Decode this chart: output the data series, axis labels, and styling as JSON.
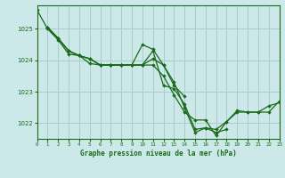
{
  "bg_color": "#cce8e8",
  "grid_color": "#aacccc",
  "line_color": "#1a6b1a",
  "marker_color": "#1a6b1a",
  "title": "Graphe pression niveau de la mer (hPa)",
  "xlim": [
    0,
    23
  ],
  "ylim": [
    1021.5,
    1025.75
  ],
  "yticks": [
    1022,
    1023,
    1024,
    1025
  ],
  "xticks": [
    0,
    1,
    2,
    3,
    4,
    5,
    6,
    7,
    8,
    9,
    10,
    11,
    12,
    13,
    14,
    15,
    16,
    17,
    18,
    19,
    20,
    21,
    22,
    23
  ],
  "x_series": [
    [
      1,
      2,
      3,
      4,
      5,
      6,
      7,
      8,
      9,
      10,
      11,
      12,
      13,
      14,
      15,
      16,
      17,
      18,
      19,
      20,
      21,
      22,
      23
    ],
    [
      0,
      1,
      2,
      3,
      4,
      5,
      6,
      7,
      8,
      9,
      10,
      11,
      12,
      13,
      14
    ],
    [
      1,
      2,
      3,
      4,
      5,
      6,
      7,
      8,
      9,
      10,
      11,
      12,
      13,
      14,
      15,
      16,
      17,
      18
    ],
    [
      1,
      2,
      3,
      4,
      5,
      6,
      7,
      8,
      9,
      10,
      11,
      12,
      13,
      14,
      15,
      16,
      17,
      18,
      19,
      20,
      21,
      22,
      23
    ]
  ],
  "series": [
    [
      1025.05,
      1024.7,
      1024.3,
      1024.15,
      1024.05,
      1023.85,
      1023.85,
      1023.85,
      1023.85,
      1023.85,
      1024.3,
      1023.2,
      1023.1,
      1022.6,
      1021.8,
      1021.85,
      1021.8,
      1022.05,
      1022.35,
      1022.35,
      1022.35,
      1022.55,
      1022.65
    ],
    [
      1025.6,
      1025.0,
      1024.65,
      1024.2,
      1024.15,
      1023.9,
      1023.85,
      1023.85,
      1023.85,
      1023.85,
      1024.5,
      1024.35,
      1023.85,
      1023.2,
      1022.85
    ],
    [
      1025.05,
      1024.7,
      1024.3,
      1024.15,
      1024.05,
      1023.85,
      1023.85,
      1023.85,
      1023.85,
      1023.85,
      1024.05,
      1023.85,
      1023.3,
      1022.5,
      1021.7,
      1021.85,
      1021.7,
      1021.8
    ],
    [
      1025.05,
      1024.7,
      1024.3,
      1024.15,
      1024.05,
      1023.85,
      1023.85,
      1023.85,
      1023.85,
      1023.85,
      1023.85,
      1023.5,
      1022.9,
      1022.35,
      1022.1,
      1022.1,
      1021.6,
      1022.05,
      1022.4,
      1022.35,
      1022.35,
      1022.35,
      1022.7
    ]
  ]
}
